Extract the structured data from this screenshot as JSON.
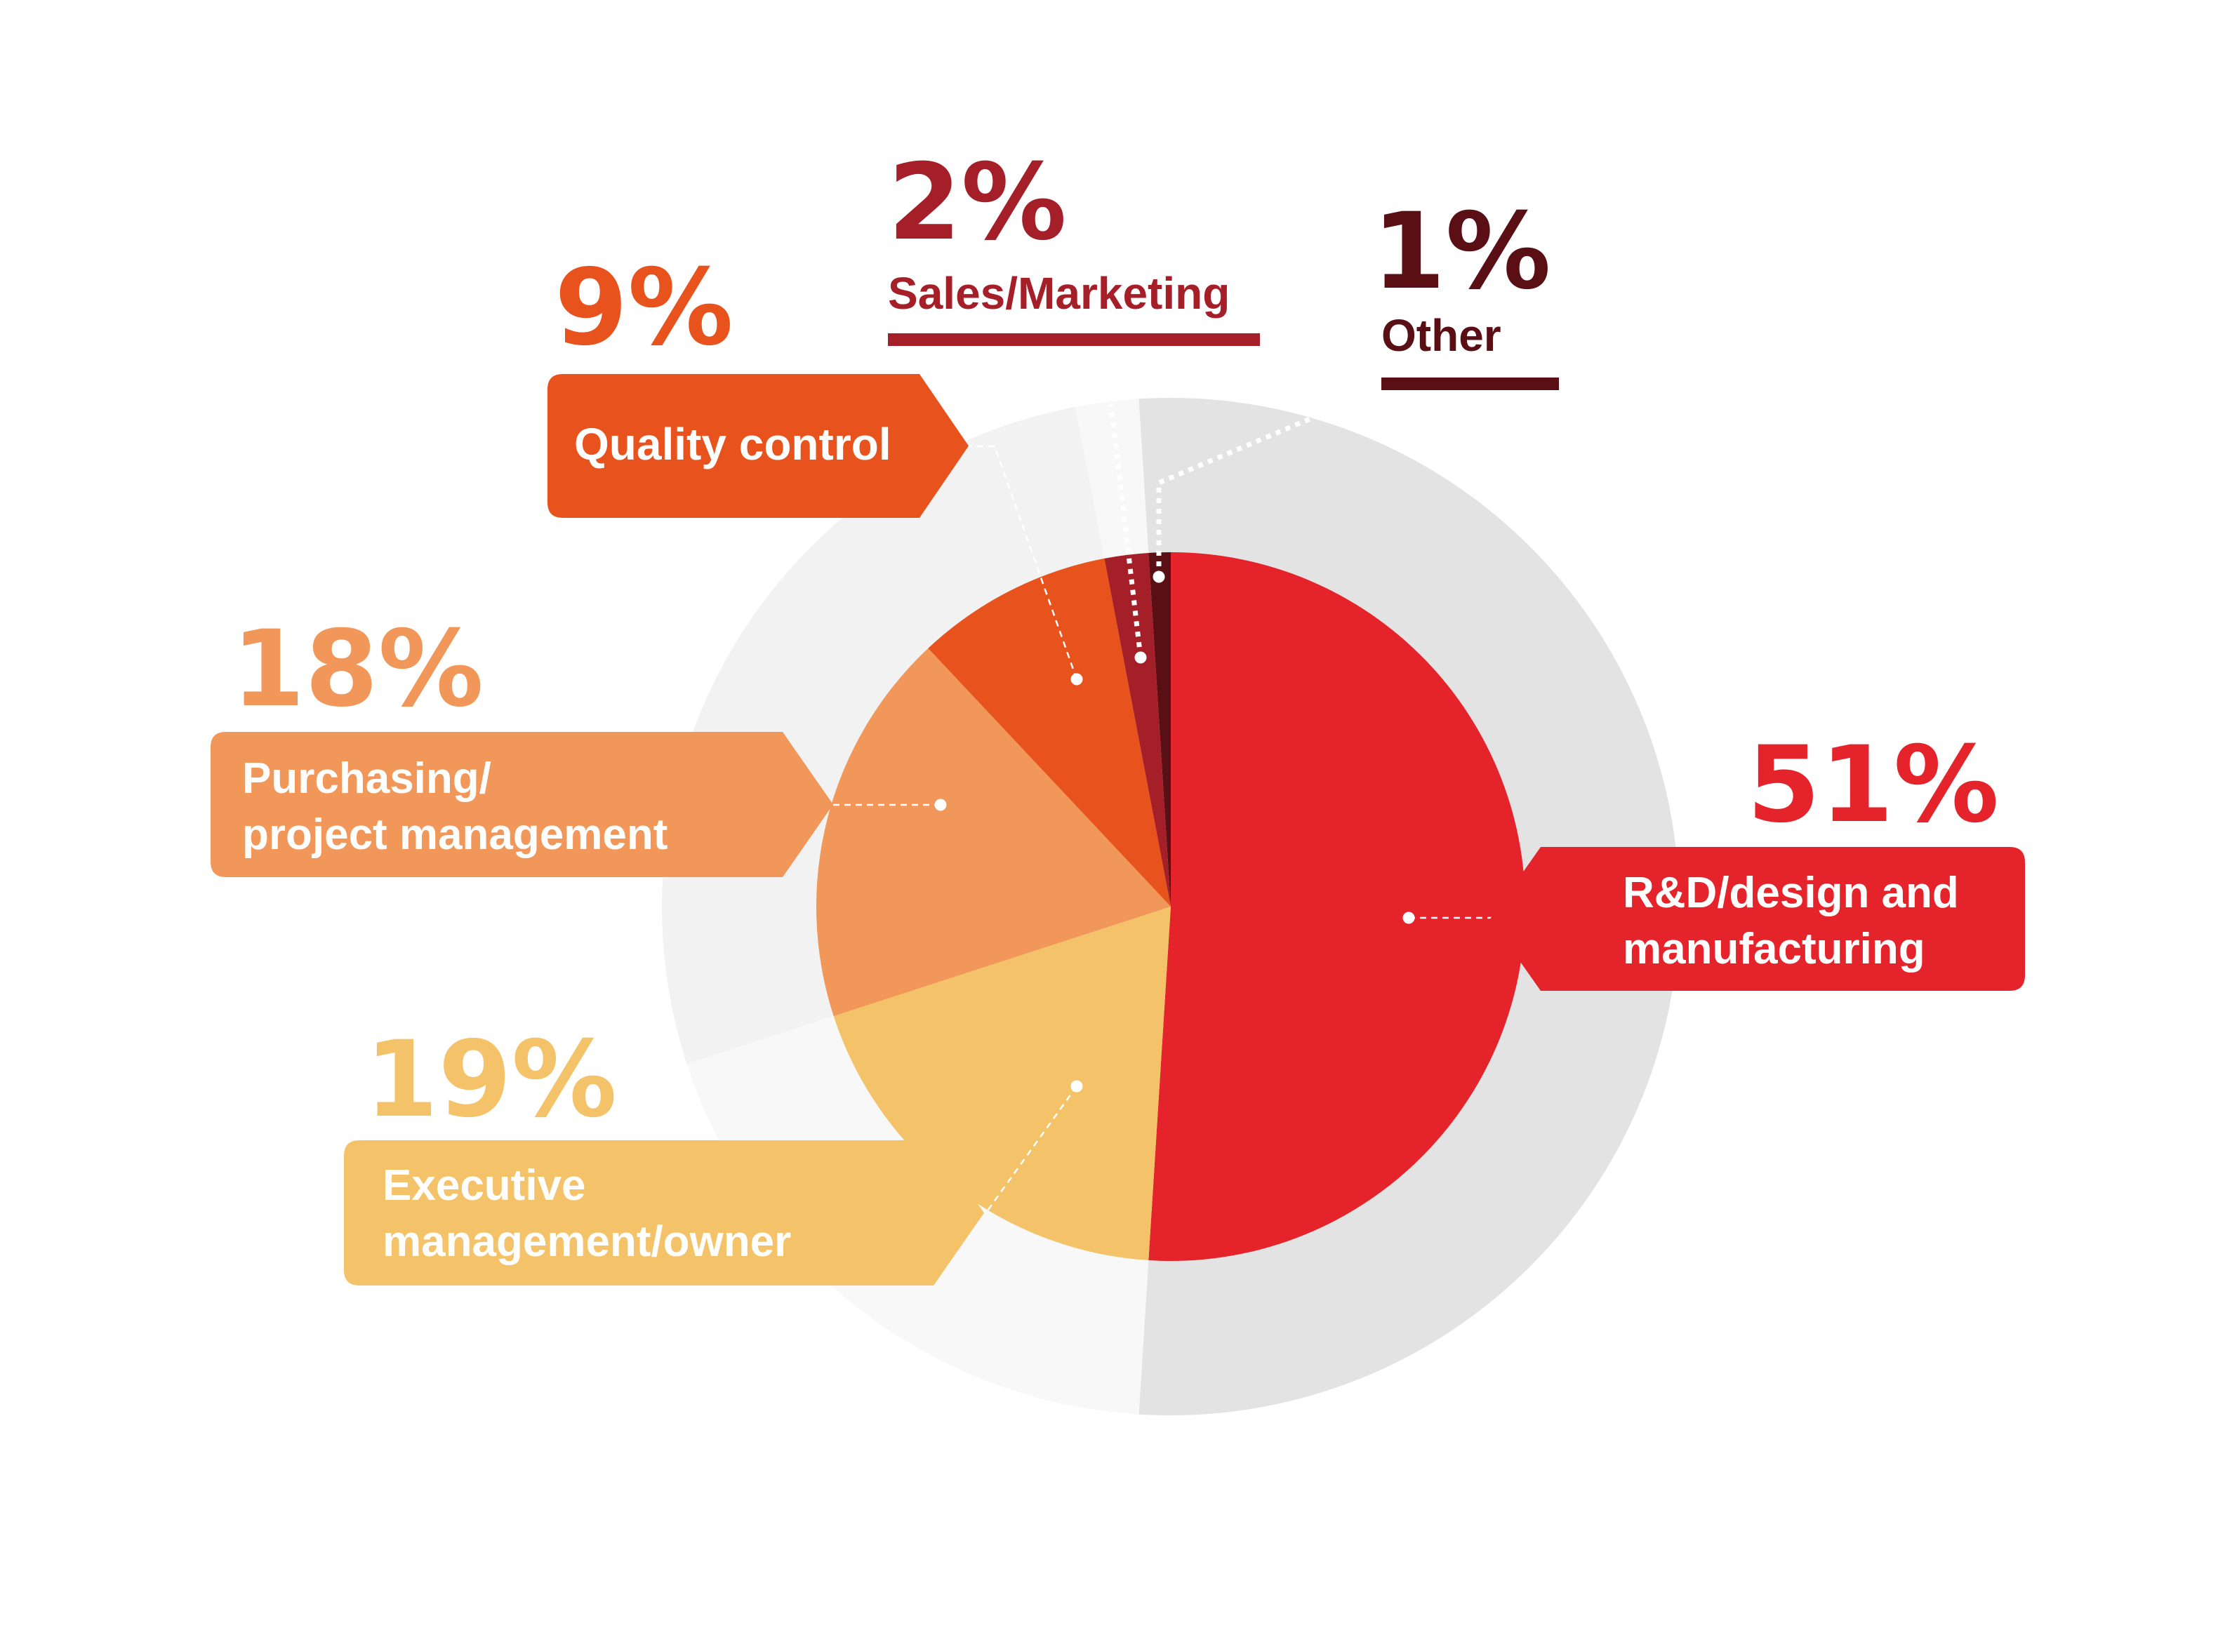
{
  "chart_data": {
    "type": "pie",
    "slices": [
      {
        "key": "rd",
        "label_lines": [
          "R&D/design and",
          "manufacturing"
        ],
        "value": 51,
        "value_label": "51%",
        "color": "#e5232b"
      },
      {
        "key": "exec",
        "label_lines": [
          "Executive",
          "management/owner"
        ],
        "value": 19,
        "value_label": "19%",
        "color": "#f4c268"
      },
      {
        "key": "purch",
        "label_lines": [
          "Purchasing/",
          "project management"
        ],
        "value": 18,
        "value_label": "18%",
        "color": "#f1975a"
      },
      {
        "key": "qc",
        "label_lines": [
          "Quality control"
        ],
        "value": 9,
        "value_label": "9%",
        "color": "#e8521c"
      },
      {
        "key": "sales",
        "label_lines": [
          "Sales/Marketing"
        ],
        "value": 2,
        "value_label": "2%",
        "color": "#a51f29"
      },
      {
        "key": "other",
        "label_lines": [
          "Other"
        ],
        "value": 1,
        "value_label": "1%",
        "color": "#5a0f14"
      }
    ],
    "label_text_color": "#ffffff",
    "outer_ring_colors": [
      "#e3e3e3",
      "#f8f8f8",
      "#f2f2f2"
    ]
  }
}
